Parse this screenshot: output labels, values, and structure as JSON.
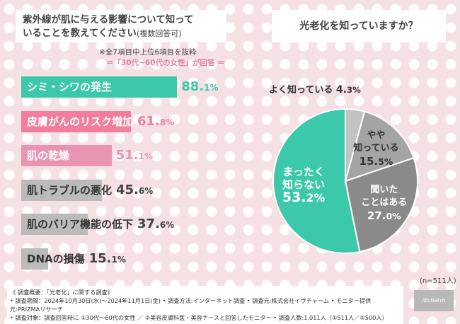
{
  "left_question": {
    "line1": "紫外線が肌に与える影響について知って",
    "line2": "いることを教えてください",
    "suffix": "(複数回答可)"
  },
  "right_question": "光老化を知っていますか？",
  "notes": {
    "selection": "※全7項目中上位6項目を抜粋",
    "respondents": "＝「30代~60代の女性」が回答 ＝"
  },
  "chart_data": [
    {
      "type": "bar",
      "orientation": "horizontal",
      "categories": [
        "シミ・シワの発生",
        "皮膚がんのリスク増加",
        "肌の乾燥",
        "肌トラブルの悪化",
        "肌のバリア機能の低下",
        "DNAの損傷"
      ],
      "values": [
        88.1,
        61.8,
        51.1,
        45.6,
        37.6,
        15.1
      ],
      "value_labels": [
        {
          "int": "88.",
          "dec": "1%"
        },
        {
          "int": "61.",
          "dec": "8%"
        },
        {
          "int": "51.",
          "dec": "1%"
        },
        {
          "int": "45.",
          "dec": "6%"
        },
        {
          "int": "37.",
          "dec": "6%"
        },
        {
          "int": "15.",
          "dec": "1%"
        }
      ],
      "colors": [
        "#3cc9aa",
        "#f07e9c",
        "#e894b2",
        "#bbbbbb",
        "#bbbbbb",
        "#bbbbbb"
      ],
      "unit": "%",
      "xlim": [
        0,
        100
      ]
    },
    {
      "type": "pie",
      "labels": [
        "よく知っている",
        "やや知っている",
        "聞いたことはある",
        "まったく知らない"
      ],
      "display_labels": [
        [
          "よく知っている"
        ],
        [
          "やや",
          "知っている"
        ],
        [
          "聞いた",
          "ことはある"
        ],
        [
          "まったく",
          "知らない"
        ]
      ],
      "values": [
        4.3,
        15.5,
        27.0,
        53.2
      ],
      "value_labels": [
        {
          "int": "4.",
          "dec": "3%"
        },
        {
          "int": "15.",
          "dec": "5%"
        },
        {
          "int": "27.",
          "dec": "0%"
        },
        {
          "int": "53.",
          "dec": "2%"
        }
      ],
      "colors": [
        "#c2c2c2",
        "#a4a4a4",
        "#8a8a8a",
        "#3cc9aa"
      ],
      "label_colors": [
        "#333333",
        "#333333",
        "#ffffff",
        "#ffffff"
      ],
      "sample_size": "(n=511人)"
    }
  ],
  "footer": {
    "line1": "《 調査概要：「光老化」に関する調査》",
    "line2": "• 調査期間：2024年10月30日(水)～2024年11月1日(金) • 調査方法:インターネット調査 • 調査元:株式会社イヴチャーム • モニター提供元:PRIZMAリサーチ",
    "line3": "• 調査対象：調査回答時に ①30代～60代の女性 ／ ②美容皮膚科医・美容ナースと回答したモニター • 調査人数:1,011人（①511人／②500人）"
  },
  "logo_text": "iEcharm"
}
